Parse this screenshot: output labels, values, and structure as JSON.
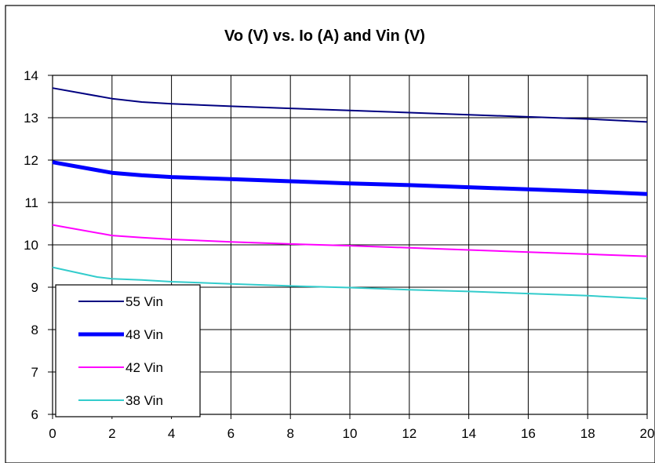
{
  "chart_data": {
    "type": "line",
    "title": "Vo (V) vs. Io (A) and Vin (V)",
    "xlabel": "",
    "ylabel": "",
    "xlim": [
      0,
      20
    ],
    "ylim": [
      6,
      14
    ],
    "x_ticks": [
      "0",
      "2",
      "4",
      "6",
      "8",
      "10",
      "12",
      "14",
      "16",
      "18",
      "20"
    ],
    "y_ticks": [
      "6",
      "7",
      "8",
      "9",
      "10",
      "11",
      "12",
      "13",
      "14"
    ],
    "grid": true,
    "legend_position": "bottom-left",
    "series": [
      {
        "name": "55 Vin",
        "color": "#000080",
        "x": [
          0,
          2,
          3,
          4,
          6,
          8,
          10,
          12,
          14,
          16,
          18,
          20
        ],
        "y": [
          13.7,
          13.45,
          13.37,
          13.33,
          13.27,
          13.22,
          13.17,
          13.12,
          13.07,
          13.02,
          12.97,
          12.9
        ]
      },
      {
        "name": "48 Vin",
        "color": "#0000FF",
        "x": [
          0,
          2,
          3,
          4,
          6,
          8,
          10,
          12,
          14,
          16,
          18,
          20
        ],
        "y": [
          11.95,
          11.7,
          11.64,
          11.6,
          11.55,
          11.5,
          11.45,
          11.41,
          11.36,
          11.31,
          11.26,
          11.2
        ]
      },
      {
        "name": "42 Vin",
        "color": "#FF00FF",
        "x": [
          0,
          2,
          3,
          4,
          6,
          8,
          10,
          12,
          14,
          16,
          18,
          20
        ],
        "y": [
          10.47,
          10.22,
          10.17,
          10.13,
          10.07,
          10.02,
          9.98,
          9.93,
          9.88,
          9.83,
          9.78,
          9.73
        ]
      },
      {
        "name": "38 Vin",
        "color": "#33CCCC",
        "x": [
          0,
          1.5,
          2,
          3,
          4,
          6,
          8,
          10,
          12,
          14,
          16,
          18,
          20
        ],
        "y": [
          9.47,
          9.24,
          9.2,
          9.17,
          9.13,
          9.08,
          9.03,
          8.99,
          8.94,
          8.9,
          8.85,
          8.8,
          8.73
        ]
      }
    ]
  }
}
